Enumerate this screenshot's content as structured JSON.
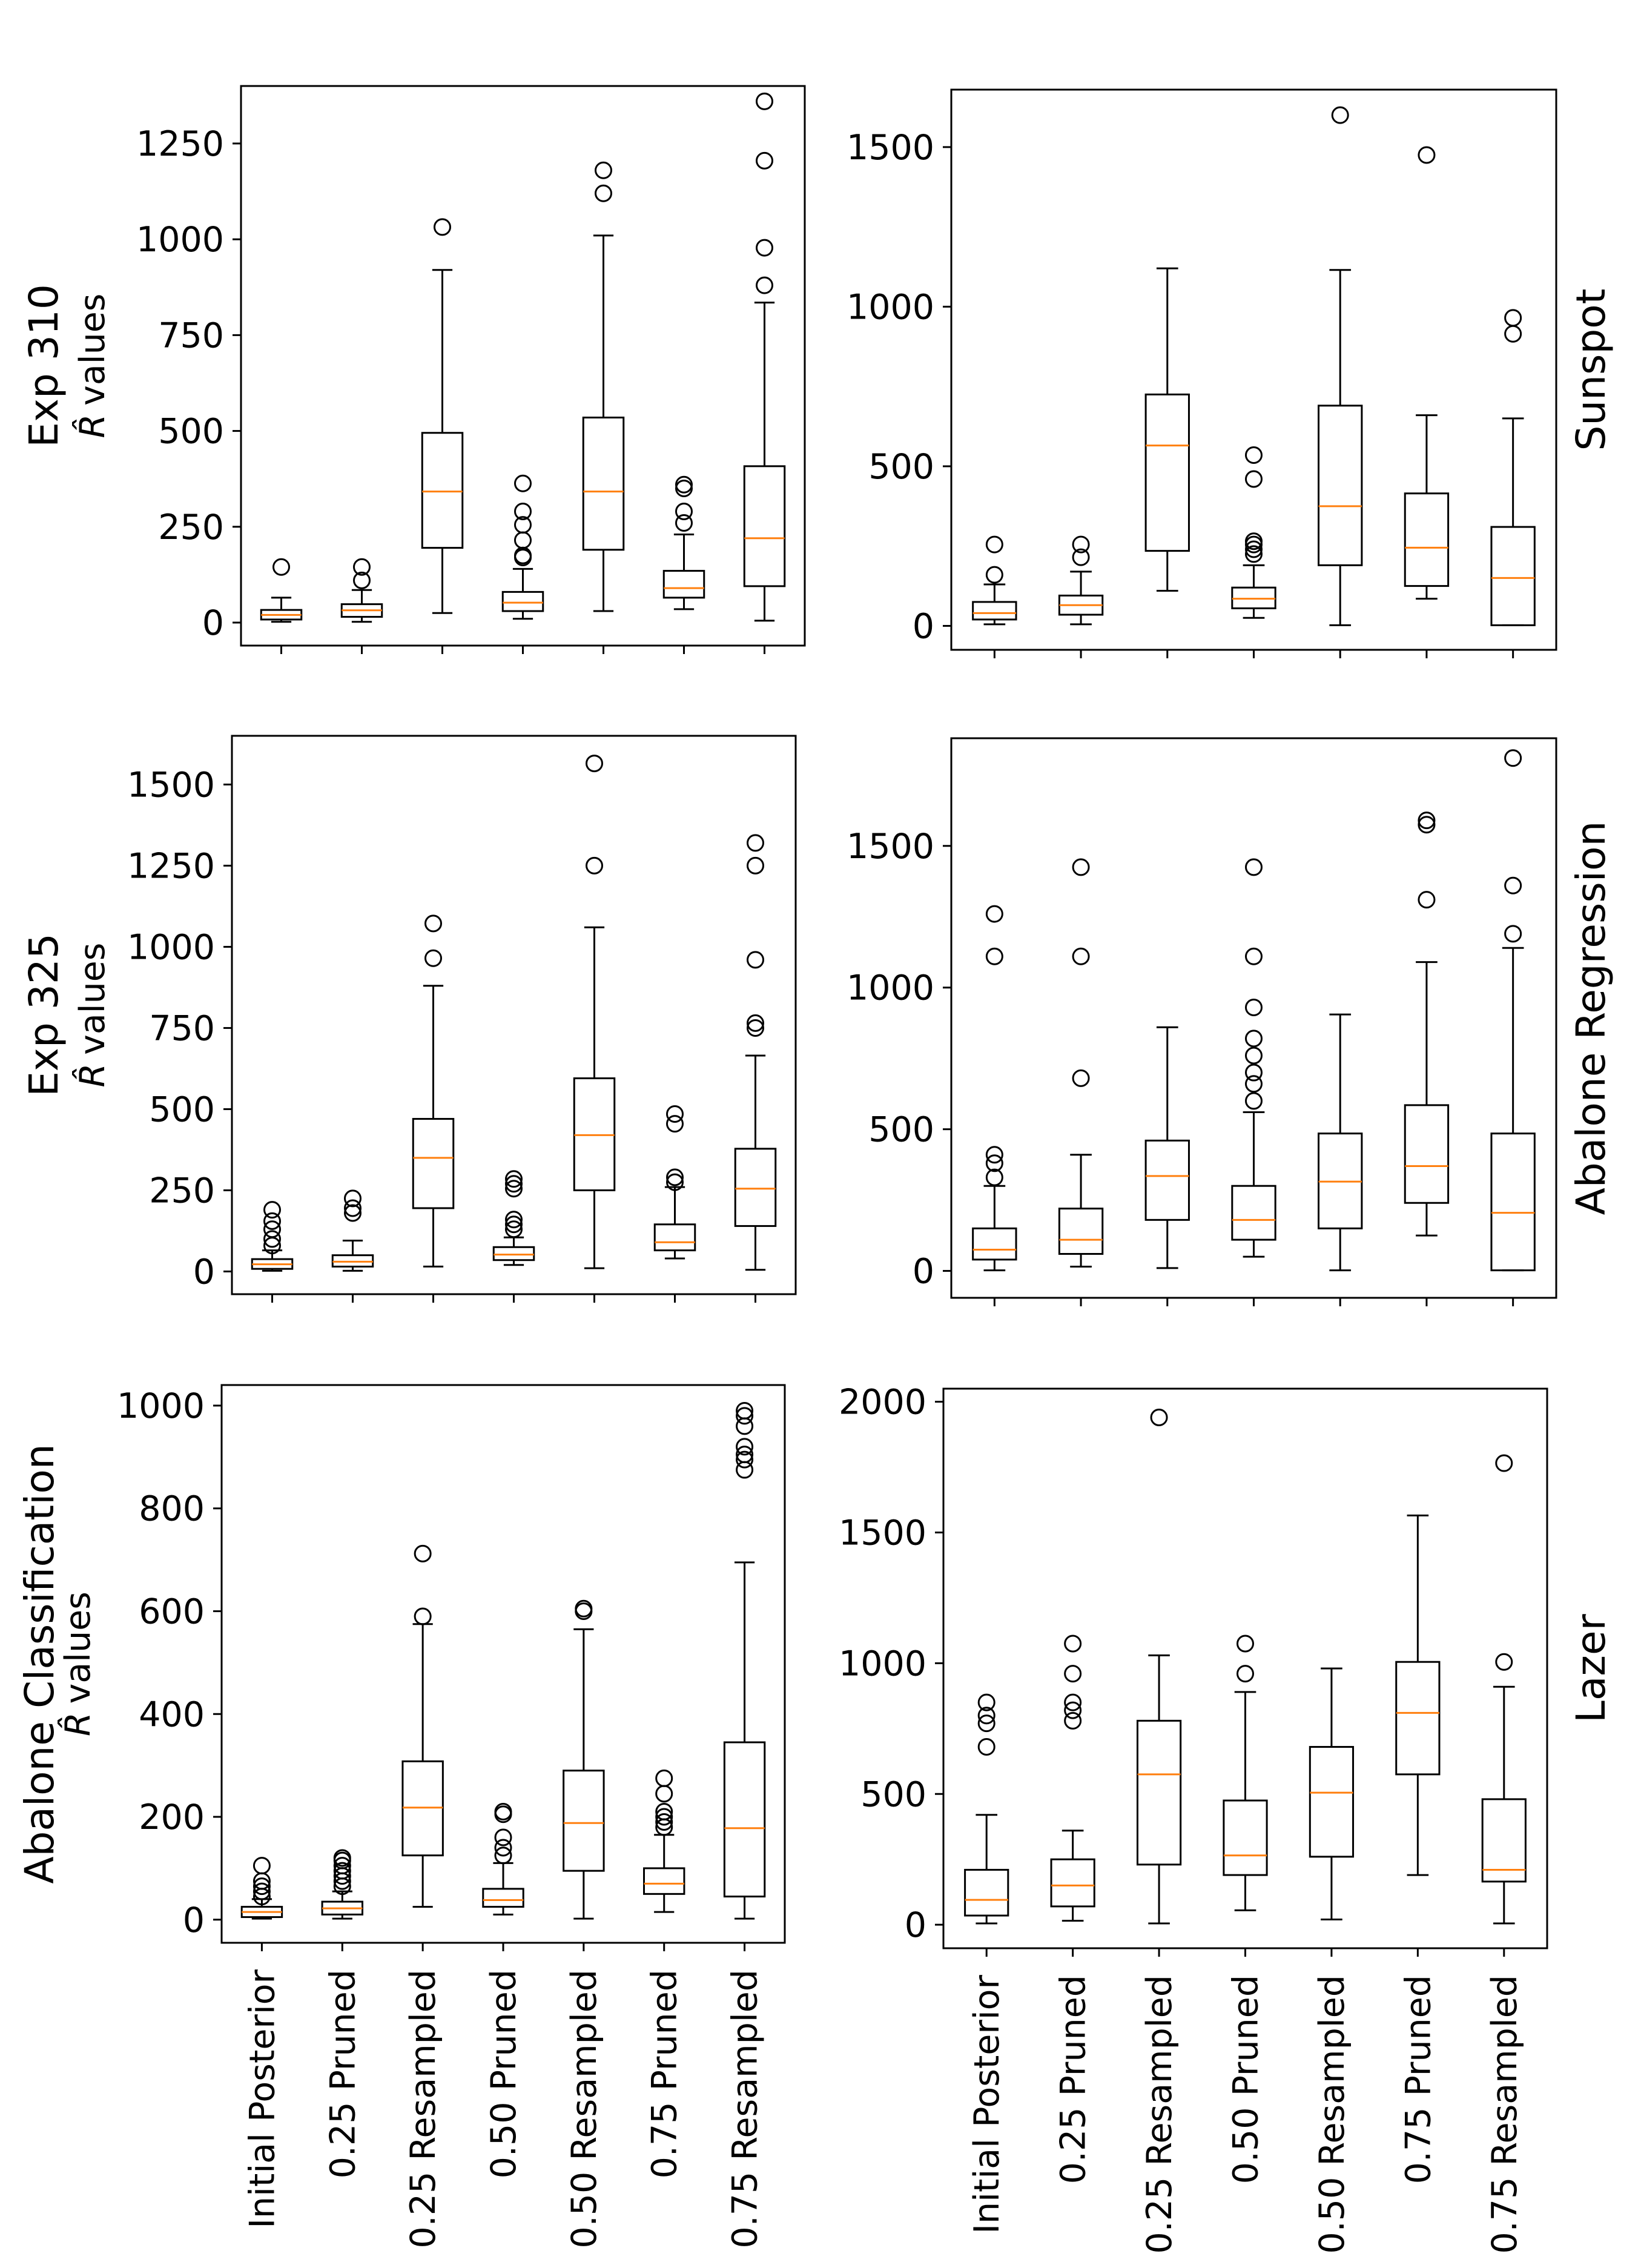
{
  "figure": {
    "ylabel_symbol": "R̂",
    "ylabel_text": "values",
    "categories": [
      "Initial Posterior",
      "0.25 Pruned",
      "0.25 Resampled",
      "0.50 Pruned",
      "0.50 Resampled",
      "0.75 Pruned",
      "0.75 Resampled"
    ]
  },
  "chart_data": [
    {
      "type": "box",
      "id": "exp310",
      "title": "Exp 310",
      "side_label": "",
      "xlabel": "",
      "ylabel": "R̂ values",
      "ylim": [
        -60,
        1400
      ],
      "yticks": [
        0,
        250,
        500,
        750,
        1000,
        1250
      ],
      "ytick_labels": [
        "0",
        "250",
        "500",
        "750",
        "1000",
        "1250"
      ],
      "categories": [
        "Initial Posterior",
        "0.25 Pruned",
        "0.25 Resampled",
        "0.50 Pruned",
        "0.50 Resampled",
        "0.75 Pruned",
        "0.75 Resampled"
      ],
      "boxes": [
        {
          "min": 2,
          "q1": 8,
          "median": 20,
          "q3": 33,
          "max": 65,
          "outliers": [
            145
          ]
        },
        {
          "min": 2,
          "q1": 15,
          "median": 32,
          "q3": 48,
          "max": 85,
          "outliers": [
            110,
            145
          ]
        },
        {
          "min": 25,
          "q1": 195,
          "median": 342,
          "q3": 495,
          "max": 920,
          "outliers": [
            1032
          ]
        },
        {
          "min": 10,
          "q1": 30,
          "median": 52,
          "q3": 80,
          "max": 140,
          "outliers": [
            170,
            175,
            215,
            255,
            290,
            363
          ]
        },
        {
          "min": 30,
          "q1": 190,
          "median": 342,
          "q3": 535,
          "max": 1010,
          "outliers": [
            1120,
            1180
          ]
        },
        {
          "min": 35,
          "q1": 65,
          "median": 90,
          "q3": 135,
          "max": 230,
          "outliers": [
            260,
            290,
            350,
            360
          ]
        },
        {
          "min": 5,
          "q1": 95,
          "median": 220,
          "q3": 408,
          "max": 835,
          "outliers": [
            880,
            978,
            1205,
            1360
          ]
        }
      ]
    },
    {
      "type": "box",
      "id": "sunspot",
      "title": "",
      "side_label": "Sunspot",
      "xlabel": "",
      "ylabel": "",
      "ylim": [
        -75,
        1680
      ],
      "yticks": [
        0,
        500,
        1000,
        1500
      ],
      "ytick_labels": [
        "0",
        "500",
        "1000",
        "1500"
      ],
      "categories": [
        "Initial Posterior",
        "0.25 Pruned",
        "0.25 Resampled",
        "0.50 Pruned",
        "0.50 Resampled",
        "0.75 Pruned",
        "0.75 Resampled"
      ],
      "boxes": [
        {
          "min": 5,
          "q1": 20,
          "median": 40,
          "q3": 75,
          "max": 130,
          "outliers": [
            160,
            255
          ]
        },
        {
          "min": 5,
          "q1": 35,
          "median": 65,
          "q3": 95,
          "max": 170,
          "outliers": [
            215,
            255
          ]
        },
        {
          "min": 110,
          "q1": 235,
          "median": 565,
          "q3": 725,
          "max": 1120,
          "outliers": []
        },
        {
          "min": 25,
          "q1": 55,
          "median": 85,
          "q3": 120,
          "max": 190,
          "outliers": [
            225,
            240,
            255,
            265,
            460,
            535
          ]
        },
        {
          "min": 2,
          "q1": 190,
          "median": 375,
          "q3": 690,
          "max": 1115,
          "outliers": [
            1600
          ]
        },
        {
          "min": 85,
          "q1": 125,
          "median": 245,
          "q3": 415,
          "max": 660,
          "outliers": [
            1475
          ]
        },
        {
          "min": 2,
          "q1": 2,
          "median": 150,
          "q3": 310,
          "max": 650,
          "outliers": [
            915,
            965
          ]
        }
      ]
    },
    {
      "type": "box",
      "id": "exp325",
      "title": "Exp 325",
      "side_label": "",
      "xlabel": "",
      "ylabel": "R̂ values",
      "ylim": [
        -70,
        1650
      ],
      "yticks": [
        0,
        250,
        500,
        750,
        1000,
        1250,
        1500
      ],
      "ytick_labels": [
        "0",
        "250",
        "500",
        "750",
        "1000",
        "1250",
        "1500"
      ],
      "categories": [
        "Initial Posterior",
        "0.25 Pruned",
        "0.25 Resampled",
        "0.50 Pruned",
        "0.50 Resampled",
        "0.75 Pruned",
        "0.75 Resampled"
      ],
      "boxes": [
        {
          "min": 2,
          "q1": 8,
          "median": 22,
          "q3": 38,
          "max": 65,
          "outliers": [
            80,
            100,
            130,
            155,
            190
          ]
        },
        {
          "min": 2,
          "q1": 15,
          "median": 30,
          "q3": 50,
          "max": 95,
          "outliers": [
            180,
            195,
            225
          ]
        },
        {
          "min": 15,
          "q1": 195,
          "median": 350,
          "q3": 470,
          "max": 880,
          "outliers": [
            965,
            1072
          ]
        },
        {
          "min": 20,
          "q1": 35,
          "median": 52,
          "q3": 75,
          "max": 105,
          "outliers": [
            130,
            145,
            160,
            255,
            270,
            285
          ]
        },
        {
          "min": 10,
          "q1": 250,
          "median": 420,
          "q3": 595,
          "max": 1060,
          "outliers": [
            1250,
            1565
          ]
        },
        {
          "min": 40,
          "q1": 65,
          "median": 90,
          "q3": 145,
          "max": 260,
          "outliers": [
            275,
            290,
            455,
            485
          ]
        },
        {
          "min": 5,
          "q1": 140,
          "median": 255,
          "q3": 378,
          "max": 665,
          "outliers": [
            750,
            765,
            960,
            1250,
            1320
          ]
        }
      ]
    },
    {
      "type": "box",
      "id": "abalone-regression",
      "title": "",
      "side_label": "Abalone Regression",
      "xlabel": "",
      "ylabel": "",
      "ylim": [
        -95,
        1880
      ],
      "yticks": [
        0,
        500,
        1000,
        1500
      ],
      "ytick_labels": [
        "0",
        "500",
        "1000",
        "1500"
      ],
      "categories": [
        "Initial Posterior",
        "0.25 Pruned",
        "0.25 Resampled",
        "0.50 Pruned",
        "0.50 Resampled",
        "0.75 Pruned",
        "0.75 Resampled"
      ],
      "boxes": [
        {
          "min": 2,
          "q1": 40,
          "median": 75,
          "q3": 150,
          "max": 300,
          "outliers": [
            330,
            380,
            410,
            1110,
            1260
          ]
        },
        {
          "min": 15,
          "q1": 60,
          "median": 110,
          "q3": 220,
          "max": 410,
          "outliers": [
            680,
            1110,
            1425
          ]
        },
        {
          "min": 10,
          "q1": 180,
          "median": 335,
          "q3": 460,
          "max": 860,
          "outliers": []
        },
        {
          "min": 50,
          "q1": 110,
          "median": 180,
          "q3": 300,
          "max": 560,
          "outliers": [
            600,
            660,
            700,
            760,
            820,
            930,
            1110,
            1425
          ]
        },
        {
          "min": 2,
          "q1": 150,
          "median": 315,
          "q3": 485,
          "max": 905,
          "outliers": []
        },
        {
          "min": 125,
          "q1": 240,
          "median": 370,
          "q3": 585,
          "max": 1090,
          "outliers": [
            1310,
            1575,
            1590
          ]
        },
        {
          "min": 2,
          "q1": 2,
          "median": 205,
          "q3": 485,
          "max": 1140,
          "outliers": [
            1190,
            1360,
            1810
          ]
        }
      ]
    },
    {
      "type": "box",
      "id": "abalone-classification",
      "title": "Abalone Classification",
      "side_label": "",
      "xlabel": "",
      "ylabel": "R̂ values",
      "ylim": [
        -45,
        1040
      ],
      "yticks": [
        0,
        200,
        400,
        600,
        800,
        1000
      ],
      "ytick_labels": [
        "0",
        "200",
        "400",
        "600",
        "800",
        "1000"
      ],
      "categories": [
        "Initial Posterior",
        "0.25 Pruned",
        "0.25 Resampled",
        "0.50 Pruned",
        "0.50 Resampled",
        "0.75 Pruned",
        "0.75 Resampled"
      ],
      "boxes": [
        {
          "min": 2,
          "q1": 5,
          "median": 15,
          "q3": 25,
          "max": 40,
          "outliers": [
            45,
            55,
            65,
            75,
            105
          ]
        },
        {
          "min": 2,
          "q1": 10,
          "median": 22,
          "q3": 35,
          "max": 55,
          "outliers": [
            65,
            75,
            85,
            95,
            105,
            115,
            120
          ]
        },
        {
          "min": 25,
          "q1": 125,
          "median": 218,
          "q3": 308,
          "max": 575,
          "outliers": [
            590,
            712
          ]
        },
        {
          "min": 10,
          "q1": 25,
          "median": 38,
          "q3": 60,
          "max": 110,
          "outliers": [
            125,
            140,
            160,
            205,
            210
          ]
        },
        {
          "min": 2,
          "q1": 95,
          "median": 188,
          "q3": 290,
          "max": 565,
          "outliers": [
            600,
            605
          ]
        },
        {
          "min": 15,
          "q1": 50,
          "median": 70,
          "q3": 100,
          "max": 165,
          "outliers": [
            180,
            190,
            200,
            210,
            245,
            275
          ]
        },
        {
          "min": 2,
          "q1": 45,
          "median": 178,
          "q3": 345,
          "max": 695,
          "outliers": [
            875,
            895,
            905,
            920,
            960,
            980,
            990
          ]
        }
      ]
    },
    {
      "type": "box",
      "id": "lazer",
      "title": "",
      "side_label": "Lazer",
      "xlabel": "",
      "ylabel": "",
      "ylim": [
        -90,
        2050
      ],
      "yticks": [
        0,
        500,
        1000,
        1500,
        2000
      ],
      "ytick_labels": [
        "0",
        "500",
        "1000",
        "1500",
        "2000"
      ],
      "categories": [
        "Initial Posterior",
        "0.25 Pruned",
        "0.25 Resampled",
        "0.50 Pruned",
        "0.50 Resampled",
        "0.75 Pruned",
        "0.75 Resampled"
      ],
      "boxes": [
        {
          "min": 5,
          "q1": 35,
          "median": 95,
          "q3": 210,
          "max": 420,
          "outliers": [
            680,
            770,
            800,
            850
          ]
        },
        {
          "min": 15,
          "q1": 70,
          "median": 150,
          "q3": 250,
          "max": 360,
          "outliers": [
            780,
            820,
            850,
            960,
            1075
          ]
        },
        {
          "min": 5,
          "q1": 230,
          "median": 575,
          "q3": 780,
          "max": 1030,
          "outliers": [
            1940
          ]
        },
        {
          "min": 55,
          "q1": 190,
          "median": 265,
          "q3": 475,
          "max": 890,
          "outliers": [
            960,
            1075
          ]
        },
        {
          "min": 20,
          "q1": 260,
          "median": 505,
          "q3": 680,
          "max": 980,
          "outliers": []
        },
        {
          "min": 190,
          "q1": 575,
          "median": 810,
          "q3": 1005,
          "max": 1565,
          "outliers": []
        },
        {
          "min": 5,
          "q1": 165,
          "median": 210,
          "q3": 480,
          "max": 910,
          "outliers": [
            1005,
            1765
          ]
        }
      ]
    }
  ],
  "colors": {
    "median": "#ff7f0e",
    "box": "#000000",
    "background": "#ffffff"
  }
}
